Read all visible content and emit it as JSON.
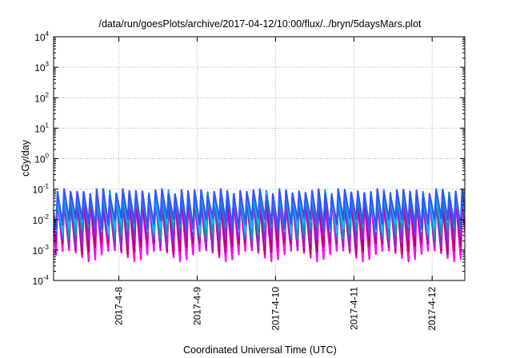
{
  "chart_data": {
    "type": "line",
    "title": "/data/run/goesPlots/archive/2017-04-12/10:00/flux/../bryn/5daysMars.plot",
    "xlabel": "Coordinated Universal Time (UTC)",
    "ylabel": "cGy/day",
    "yscale": "log",
    "ylim": [
      0.0001,
      10000
    ],
    "xlim": [
      "2017-04-07T04:00",
      "2017-04-12T10:00"
    ],
    "y_ticks": [
      {
        "base": "10",
        "exp": "-4"
      },
      {
        "base": "10",
        "exp": "-3"
      },
      {
        "base": "10",
        "exp": "-2"
      },
      {
        "base": "10",
        "exp": "-1"
      },
      {
        "base": "10",
        "exp": "0"
      },
      {
        "base": "10",
        "exp": "1"
      },
      {
        "base": "10",
        "exp": "2"
      },
      {
        "base": "10",
        "exp": "3"
      },
      {
        "base": "10",
        "exp": "4"
      }
    ],
    "x_ticks": [
      "2017-4-8",
      "2017-4-9",
      "2017-4-10",
      "2017-4-11",
      "2017-4-12"
    ],
    "grid": true,
    "sawtooth_period_hours": 2,
    "series": [
      {
        "color": "#ff00ff",
        "peak": 0.04,
        "trough": 0.0007
      },
      {
        "color": "#c0005a",
        "peak": 0.05,
        "trough": 0.0012
      },
      {
        "color": "#8a2be2",
        "peak": 0.06,
        "trough": 0.002
      },
      {
        "color": "#00a0a0",
        "peak": 0.07,
        "trough": 0.004
      },
      {
        "color": "#00c0ff",
        "peak": 0.075,
        "trough": 0.006
      },
      {
        "color": "#3355ff",
        "peak": 0.085,
        "trough": 0.008
      }
    ]
  }
}
